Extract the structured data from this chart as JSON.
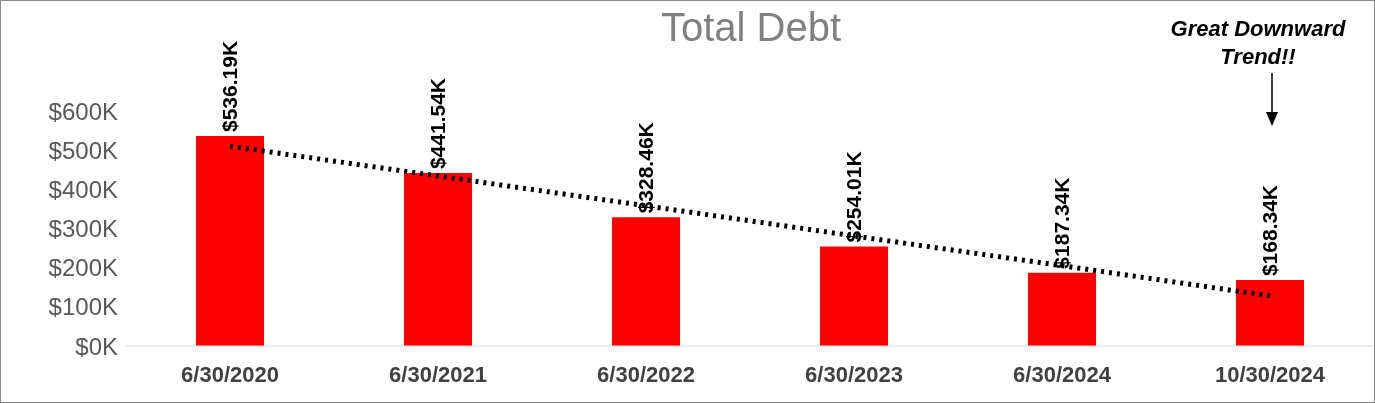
{
  "chart_data": {
    "type": "bar",
    "title": "Total Debt",
    "categories": [
      "6/30/2020",
      "6/30/2021",
      "6/30/2022",
      "6/30/2023",
      "6/30/2024",
      "10/30/2024"
    ],
    "series": [
      {
        "color": "#ff0000",
        "values": [
          536.19,
          441.54,
          328.46,
          254.01,
          187.34,
          168.34
        ],
        "value_labels": [
          "$536.19K",
          "$441.54K",
          "$328.46K",
          "$254.01K",
          "$187.34K",
          "$168.34K"
        ]
      },
      {
        "type": "line",
        "color": "#000000",
        "line_style": "dotted",
        "marker": "none",
        "values": [
          510,
          434,
          358,
          281,
          205,
          128
        ]
      }
    ],
    "ylim": [
      0,
      600
    ],
    "yticks": [
      {
        "value": 0,
        "label": "$0K"
      },
      {
        "value": 100,
        "label": "$100K"
      },
      {
        "value": 200,
        "label": "$200K"
      },
      {
        "value": 300,
        "label": "$300K"
      },
      {
        "value": 400,
        "label": "$400K"
      },
      {
        "value": 500,
        "label": "$500K"
      },
      {
        "value": 600,
        "label": "$600K"
      }
    ],
    "grid": false,
    "legend": false,
    "annotations": [
      "Great Downward Trend!!"
    ]
  }
}
